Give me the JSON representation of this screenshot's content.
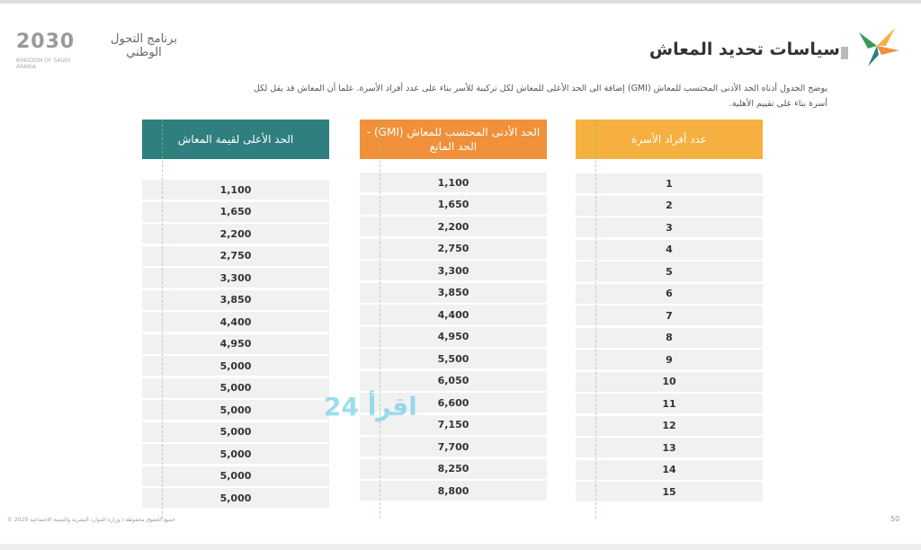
{
  "header": {
    "title": "سياسات تحديد المعاش",
    "program": "برنامج التحول الوطني",
    "vision": "2030",
    "vision_sub": "KINGDOM OF SAUDI ARABIA"
  },
  "description": "يوضح الجدول أدناه الحد الأدنى المحتسب للمعاش (GMI) إضافة الى الحد الأعلى للمعاش لكل تركيبة للأسر بناء على عدد أفراد الأسرة. علما أن المعاش قد يقل لكل أسرة بناء على تقييم الأهلية.",
  "colors": {
    "teal": "#2f7f7f",
    "orange": "#f0903a",
    "yellow": "#f5b03f"
  },
  "tables": {
    "max": {
      "header": "الحد الأعلى لقيمة المعاش",
      "values": [
        "1,100",
        "1,650",
        "2,200",
        "2,750",
        "3,300",
        "3,850",
        "4,400",
        "4,950",
        "5,000",
        "5,000",
        "5,000",
        "5,000",
        "5,000",
        "5,000",
        "5,000"
      ]
    },
    "gmi": {
      "header": "الحد الأدنى المحتسب للمعاش (GMI) - الحد المانع",
      "values": [
        "1,100",
        "1,650",
        "2,200",
        "2,750",
        "3,300",
        "3,850",
        "4,400",
        "4,950",
        "5,500",
        "6,050",
        "6,600",
        "7,150",
        "7,700",
        "8,250",
        "8,800"
      ]
    },
    "members": {
      "header": "عدد أفراد الأسرة",
      "values": [
        "1",
        "2",
        "3",
        "4",
        "5",
        "6",
        "7",
        "8",
        "9",
        "10",
        "11",
        "12",
        "13",
        "14",
        "15"
      ]
    }
  },
  "footer": {
    "copyright": "جميع الحقوق محفوظة / وزارة الموارد البشرية والتنمية الاجتماعية 2020 ©",
    "page": "50"
  },
  "watermark": "24 اقرأ"
}
